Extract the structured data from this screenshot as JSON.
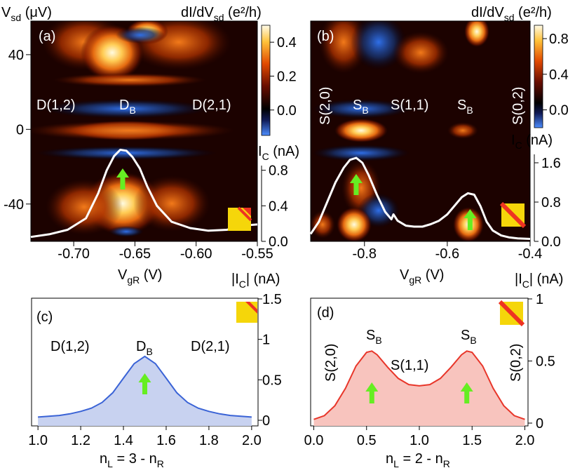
{
  "colors": {
    "panel_c_line": "#3a63d6",
    "panel_c_fill": "#c8d2f0",
    "panel_d_line": "#e8362a",
    "panel_d_fill": "#f8c4be",
    "arrow": "#66ee22",
    "ic_overlay": "#ffffff",
    "legend_square": "#f5d60a",
    "legend_stripe": "#ee3322"
  },
  "chart_data": [
    {
      "panel": "(a)",
      "type": "heatmap",
      "ylabel": "V_sd (μV)",
      "xlabel": "V_gR (V)",
      "xlim": [
        -0.735,
        -0.55
      ],
      "ylim": [
        -60,
        58
      ],
      "xticks": [
        "-0.70",
        "-0.65",
        "-0.60",
        "-0.55"
      ],
      "yticks": [
        "40",
        "0",
        "-40"
      ],
      "colorbar": {
        "title": "dI/dV_sd (e²/h)",
        "range": [
          -0.15,
          0.5
        ],
        "ticks": [
          "0.4",
          "0.2",
          "0.0"
        ]
      },
      "ic_axis": {
        "title": "I_C (nA)",
        "range": [
          0,
          1.2
        ],
        "ticks": [
          "0.8",
          "0.4",
          "0.0"
        ]
      },
      "annotations": [
        "D(1,2)",
        "D_B",
        "D(2,1)"
      ],
      "ic_overlay": {
        "x": [
          -0.735,
          -0.72,
          -0.705,
          -0.69,
          -0.68,
          -0.673,
          -0.667,
          -0.662,
          -0.657,
          -0.652,
          -0.646,
          -0.64,
          -0.632,
          -0.62,
          -0.605,
          -0.59,
          -0.575,
          -0.56,
          -0.55
        ],
        "y": [
          0.05,
          0.08,
          0.13,
          0.26,
          0.54,
          0.8,
          0.96,
          1.03,
          1.02,
          0.95,
          0.82,
          0.62,
          0.4,
          0.22,
          0.15,
          0.12,
          0.13,
          0.18,
          0.19
        ]
      },
      "arrow_x": -0.66
    },
    {
      "panel": "(b)",
      "type": "heatmap",
      "xlabel": "V_gR (V)",
      "xlim": [
        -0.93,
        -0.4
      ],
      "ylim": [
        -60,
        58
      ],
      "xticks": [
        "-0.8",
        "-0.6",
        "-0.4"
      ],
      "colorbar": {
        "title": "dI/dV_sd (e²/h)",
        "range": [
          -0.2,
          0.95
        ],
        "ticks": [
          "0.8",
          "0.4",
          "0.0"
        ]
      },
      "ic_axis": {
        "title": "I_C (nA)",
        "range": [
          0,
          2.0
        ],
        "ticks": [
          "1.6",
          "0.8",
          "0.0"
        ]
      },
      "annotations": [
        "S(2,0)",
        "S_B",
        "S(1,1)",
        "S_B",
        "S(0,2)"
      ],
      "ic_overlay": {
        "x": [
          -0.93,
          -0.91,
          -0.89,
          -0.87,
          -0.85,
          -0.835,
          -0.82,
          -0.805,
          -0.79,
          -0.77,
          -0.75,
          -0.735,
          -0.73,
          -0.72,
          -0.7,
          -0.68,
          -0.66,
          -0.64,
          -0.62,
          -0.6,
          -0.58,
          -0.565,
          -0.55,
          -0.535,
          -0.52,
          -0.505,
          -0.49,
          -0.47,
          -0.45,
          -0.43,
          -0.4
        ],
        "y": [
          0.15,
          0.4,
          0.8,
          1.2,
          1.5,
          1.66,
          1.7,
          1.6,
          1.35,
          0.95,
          0.6,
          0.45,
          0.55,
          0.42,
          0.32,
          0.3,
          0.3,
          0.35,
          0.42,
          0.55,
          0.75,
          0.9,
          0.98,
          0.95,
          0.72,
          0.4,
          0.22,
          0.12,
          0.08,
          0.06,
          0.05
        ]
      },
      "arrow_x": [
        -0.82,
        -0.545
      ]
    },
    {
      "panel": "(c)",
      "type": "area",
      "xlabel": "n_L = 3 - n_R",
      "ylabel": "|I_C| (nA)",
      "xlim": [
        0.97,
        2.03
      ],
      "ylim": [
        0,
        1.5
      ],
      "xticks": [
        "1.0",
        "1.2",
        "1.4",
        "1.6",
        "1.8",
        "2.0"
      ],
      "yticks": [
        "1.5",
        "1",
        "0.5",
        "0"
      ],
      "annotations": [
        "D(1,2)",
        "D_B",
        "D(2,1)"
      ],
      "x": [
        1.0,
        1.05,
        1.1,
        1.15,
        1.2,
        1.25,
        1.3,
        1.35,
        1.4,
        1.45,
        1.5,
        1.55,
        1.6,
        1.65,
        1.7,
        1.75,
        1.8,
        1.85,
        1.9,
        1.95,
        2.0
      ],
      "y": [
        0.04,
        0.05,
        0.06,
        0.08,
        0.11,
        0.15,
        0.22,
        0.34,
        0.52,
        0.7,
        0.79,
        0.7,
        0.52,
        0.34,
        0.22,
        0.15,
        0.11,
        0.08,
        0.06,
        0.05,
        0.04
      ],
      "arrow_x": 1.5
    },
    {
      "panel": "(d)",
      "type": "area",
      "xlabel": "n_L = 2 - n_R",
      "ylabel": "|I_C| (nA)",
      "xlim": [
        -0.03,
        2.03
      ],
      "ylim": [
        0,
        1.0
      ],
      "xticks": [
        "0.0",
        "0.5",
        "1.0",
        "1.5",
        "2.0"
      ],
      "yticks": [
        "1",
        "0.5",
        "0"
      ],
      "annotations": [
        "S(2,0)",
        "S_B",
        "S(1,1)",
        "S_B",
        "S(0,2)"
      ],
      "x": [
        0.0,
        0.1,
        0.2,
        0.3,
        0.4,
        0.5,
        0.55,
        0.6,
        0.7,
        0.8,
        0.9,
        1.0,
        1.1,
        1.2,
        1.3,
        1.4,
        1.45,
        1.5,
        1.6,
        1.7,
        1.8,
        1.9,
        2.0
      ],
      "y": [
        0.03,
        0.06,
        0.14,
        0.28,
        0.46,
        0.57,
        0.58,
        0.55,
        0.45,
        0.36,
        0.31,
        0.3,
        0.31,
        0.36,
        0.45,
        0.55,
        0.58,
        0.57,
        0.46,
        0.28,
        0.14,
        0.06,
        0.03
      ],
      "arrow_x": [
        0.55,
        1.45
      ]
    }
  ]
}
